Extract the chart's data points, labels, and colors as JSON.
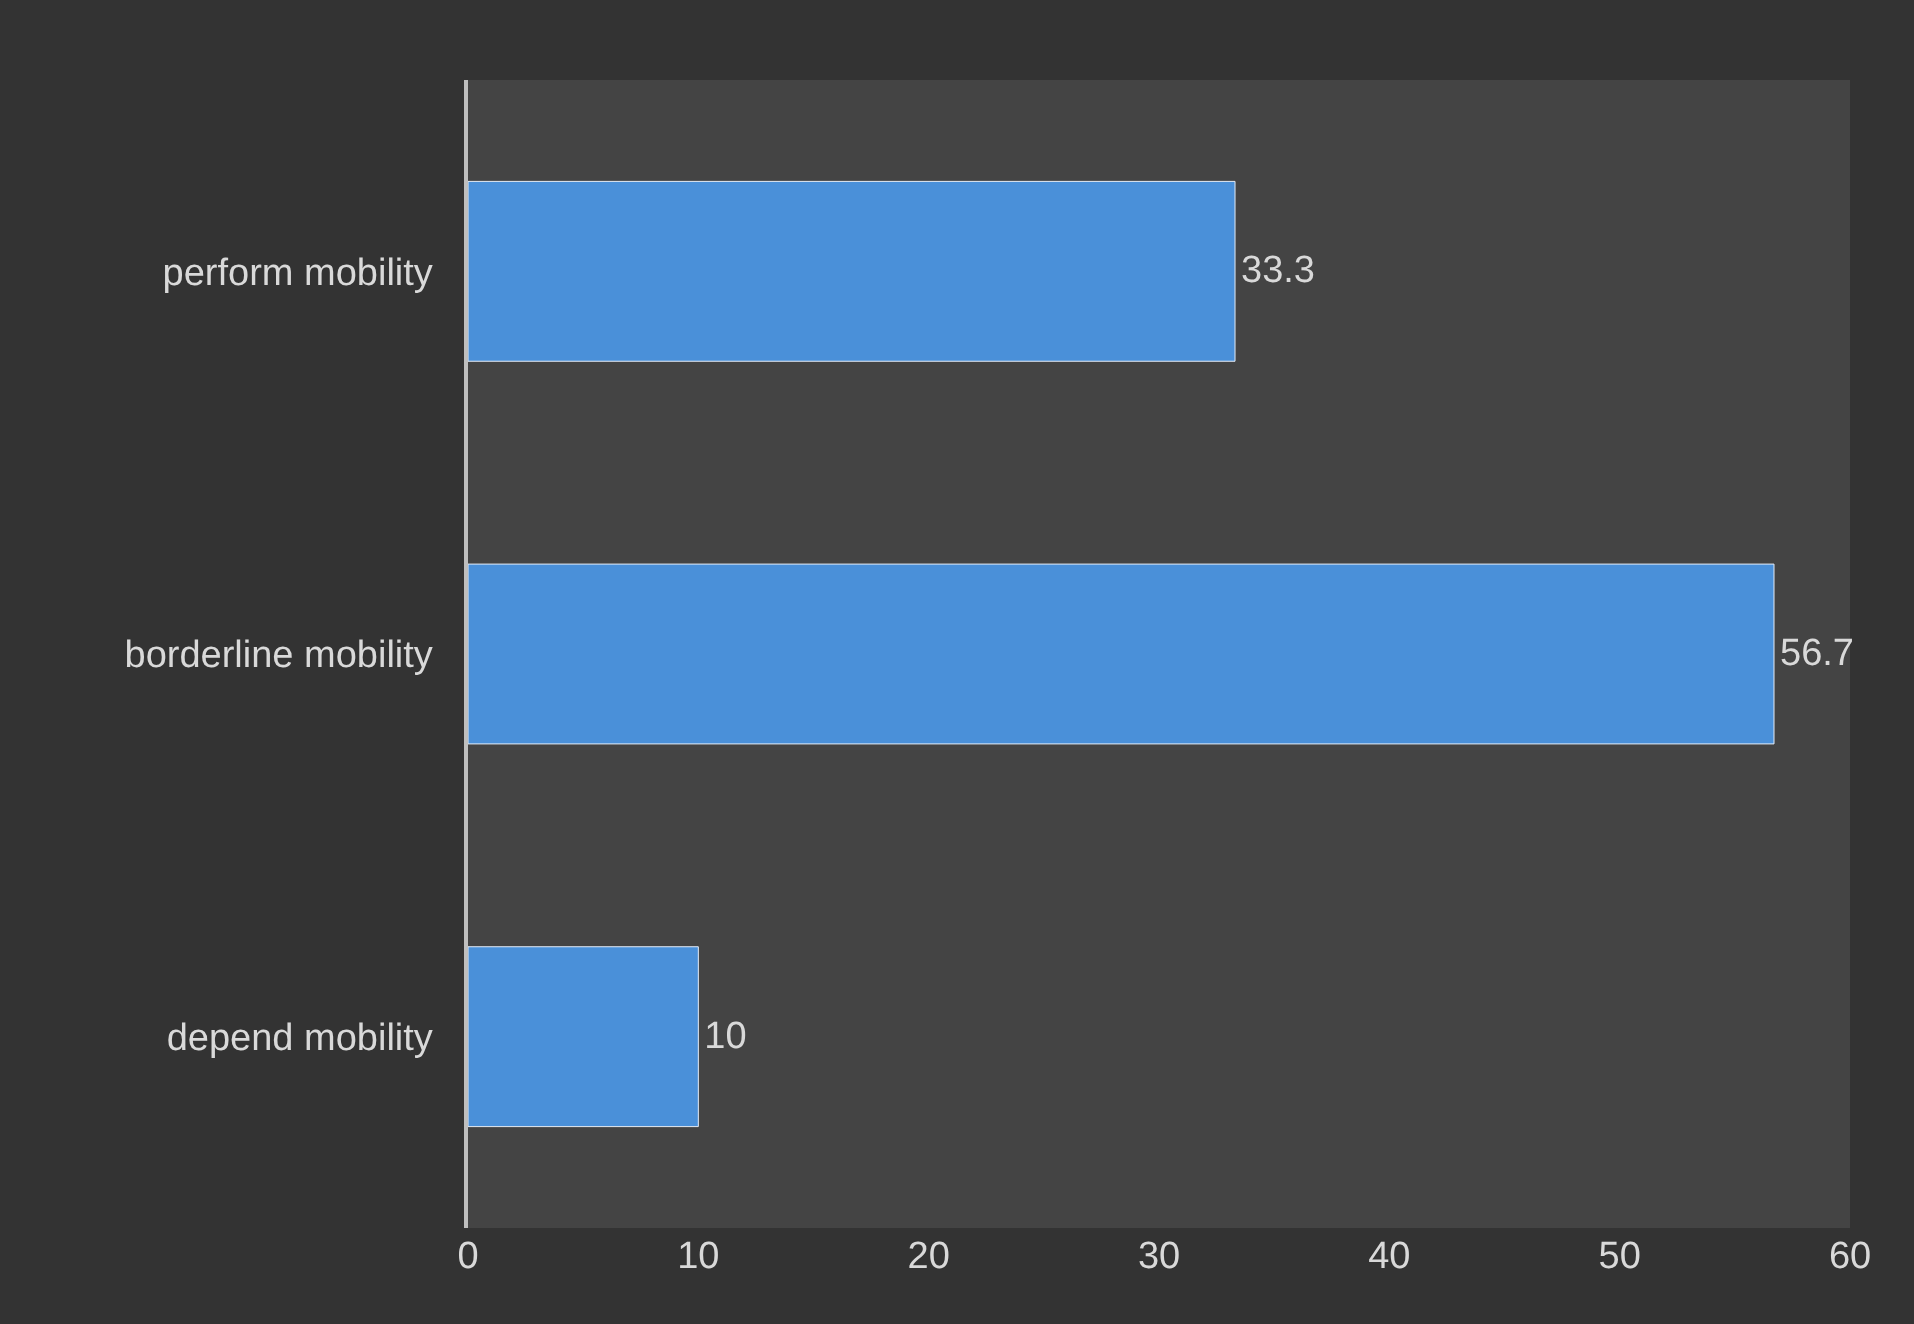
{
  "chart_data": {
    "type": "bar",
    "orientation": "horizontal",
    "categories": [
      "perform mobility",
      "borderline mobility",
      "depend mobility"
    ],
    "values": [
      33.3,
      56.7,
      10
    ],
    "color": "#4a90d9",
    "xlim": [
      0,
      60
    ],
    "xticks": [
      0,
      10,
      20,
      30,
      40,
      50,
      60
    ],
    "data_labels": true,
    "grid": false,
    "legend": false
  }
}
